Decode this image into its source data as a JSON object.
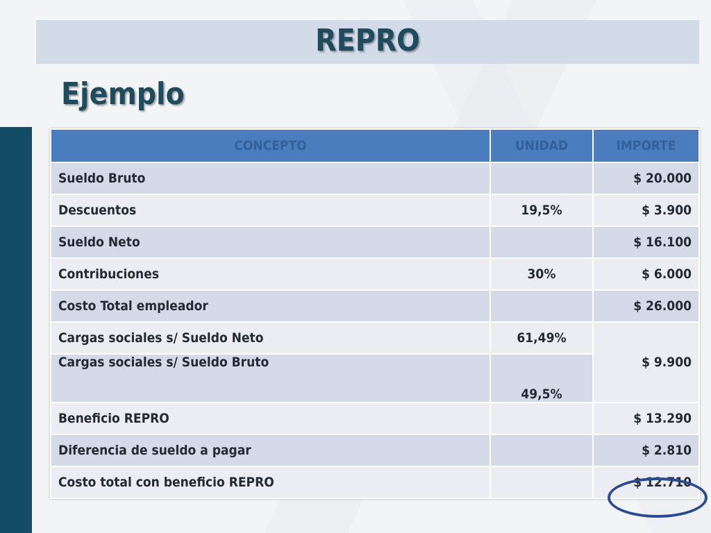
{
  "slide": {
    "title": "REPRO",
    "subtitle": "Ejemplo"
  },
  "table": {
    "headers": [
      "CONCEPTO",
      "UNIDAD",
      "IMPORTE"
    ],
    "rows": [
      {
        "concept": "Sueldo Bruto",
        "unit": "",
        "amount": "$ 20.000"
      },
      {
        "concept": "Descuentos",
        "unit": "19,5%",
        "amount": "$ 3.900"
      },
      {
        "concept": "Sueldo Neto",
        "unit": "",
        "amount": "$ 16.100"
      },
      {
        "concept": "Contribuciones",
        "unit": "30%",
        "amount": "$ 6.000"
      },
      {
        "concept": "Costo Total empleador",
        "unit": "",
        "amount": "$ 26.000"
      },
      {
        "concept": "Cargas sociales s/ Sueldo Neto",
        "unit": "61,49%",
        "amount": "$ 9.900"
      },
      {
        "concept": "Cargas sociales s/ Sueldo Bruto",
        "unit": "49,5%",
        "amount": ""
      },
      {
        "concept": "Beneficio REPRO",
        "unit": "",
        "amount": "$ 13.290"
      },
      {
        "concept": "Diferencia de sueldo a pagar",
        "unit": "",
        "amount": "$ 2.810"
      },
      {
        "concept": "Costo total con beneficio REPRO",
        "unit": "",
        "amount": "$ 12.710"
      }
    ]
  },
  "colors": {
    "title_text": "#1f4b5c",
    "banner_bg": "#d3dbe9",
    "header_bg": "#4a7dbd",
    "row_dark": "#d4dae8",
    "row_light": "#ecedf3",
    "side_bar": "#134d65",
    "highlight_ring": "#2a4b8f"
  }
}
